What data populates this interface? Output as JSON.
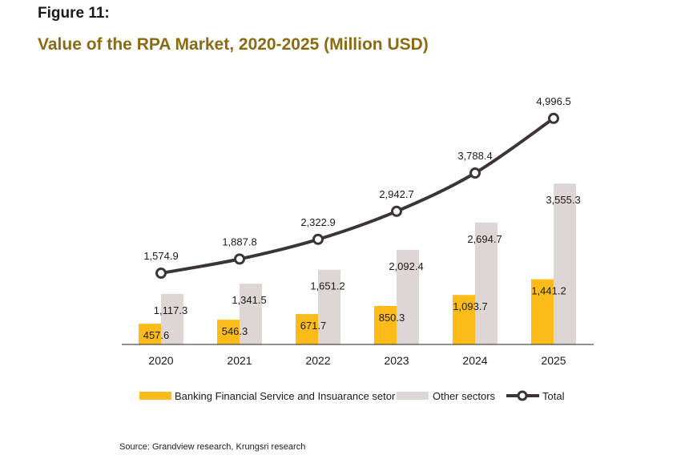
{
  "figure_label": "Figure 11:",
  "title": "Value of the RPA Market, 2020-2025 (Million USD)",
  "source": "Source: Grandview research, Krungsri research",
  "chart_data": {
    "type": "bar",
    "categories": [
      "2020",
      "2021",
      "2022",
      "2023",
      "2024",
      "2025"
    ],
    "ylim": [
      0,
      5400
    ],
    "grid": false,
    "legend_position": "bottom",
    "series": [
      {
        "name": "Banking Financial Service and Insuarance setor",
        "type": "bar",
        "color": "#fbbc1a",
        "values": [
          457.6,
          546.3,
          671.7,
          850.3,
          1093.7,
          1441.2
        ],
        "labels": [
          "457.6",
          "546.3",
          "671.7",
          "850.3",
          "1,093.7",
          "1,441.2"
        ]
      },
      {
        "name": "Other sectors",
        "type": "bar",
        "color": "#ded5d5",
        "values": [
          1117.3,
          1341.5,
          1651.2,
          2092.4,
          2694.7,
          3555.3
        ],
        "labels": [
          "1,117.3",
          "1,341.5",
          "1,651.2",
          "2,092.4",
          "2,694.7",
          "3,555.3"
        ]
      },
      {
        "name": "Total",
        "type": "line",
        "color": "#3d3535",
        "values": [
          1574.9,
          1887.8,
          2322.9,
          2942.7,
          3788.4,
          4996.5
        ],
        "labels": [
          "1,574.9",
          "1,887.8",
          "2,322.9",
          "2,942.7",
          "3,788.4",
          "4,996.5"
        ]
      }
    ]
  }
}
